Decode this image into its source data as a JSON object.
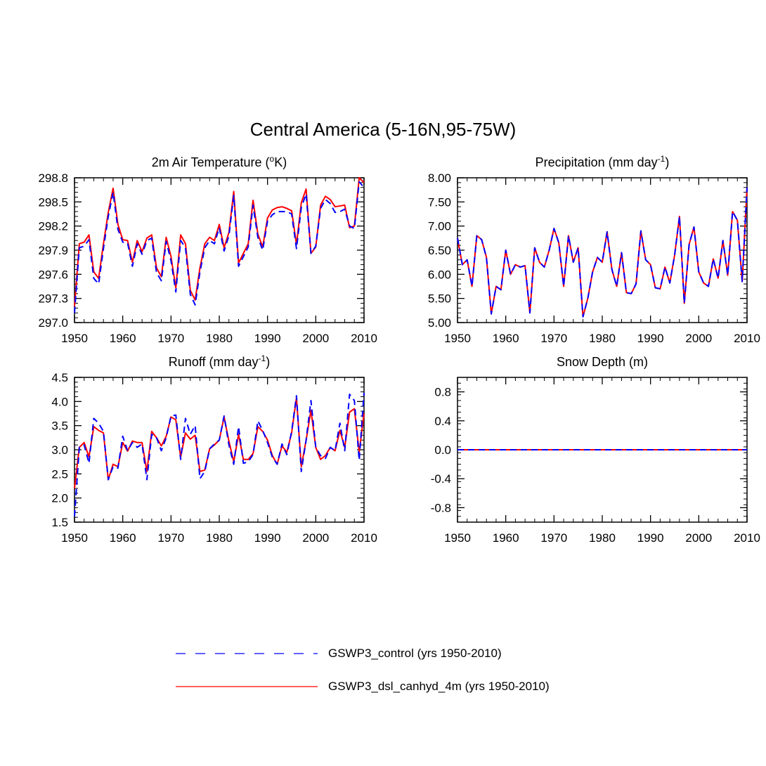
{
  "figure": {
    "title": "Central America (5-16N,95-75W)",
    "legend": [
      {
        "label": "GSWP3_control (yrs 1950-2010)",
        "color": "#0000ff",
        "style": "dashed"
      },
      {
        "label": "GSWP3_dsl_canhyd_4m (yrs 1950-2010)",
        "color": "#ff0000",
        "style": "solid"
      }
    ]
  },
  "chart_data": [
    {
      "type": "line",
      "title": {
        "main": "2m Air Temperature (",
        "sup": "o",
        "after": "K)"
      },
      "xlim": [
        1950,
        2010
      ],
      "xticks": [
        1950,
        1960,
        1970,
        1980,
        1990,
        2000,
        2010
      ],
      "ylim": [
        297.0,
        298.8
      ],
      "yticks": [
        297.0,
        297.3,
        297.6,
        297.9,
        298.2,
        298.5,
        298.8
      ],
      "ytick_labels": [
        "297.0",
        "297.3",
        "297.6",
        "297.9",
        "298.2",
        "298.5",
        "298.8"
      ],
      "x_start": 1950,
      "series": [
        {
          "name": "GSWP3_control",
          "color": "#0000ff",
          "dashed": true,
          "values": [
            297.12,
            297.93,
            297.95,
            298.03,
            297.55,
            297.48,
            297.92,
            298.32,
            298.62,
            298.16,
            298.0,
            297.99,
            297.7,
            297.98,
            297.85,
            298.02,
            298.05,
            297.62,
            297.52,
            298.01,
            297.77,
            297.38,
            298.02,
            297.93,
            297.35,
            297.22,
            297.63,
            297.93,
            298.02,
            297.98,
            298.18,
            297.89,
            298.08,
            298.58,
            297.7,
            297.82,
            297.94,
            298.46,
            298.06,
            297.9,
            298.26,
            298.34,
            298.38,
            298.38,
            298.38,
            298.35,
            297.92,
            298.43,
            298.6,
            297.86,
            297.95,
            298.42,
            298.53,
            298.48,
            298.37,
            298.38,
            298.41,
            298.2,
            298.17,
            298.75,
            298.68
          ]
        },
        {
          "name": "GSWP3_dsl_canhyd_4m",
          "color": "#ff0000",
          "dashed": false,
          "values": [
            297.2,
            297.98,
            298.0,
            298.09,
            297.63,
            297.55,
            297.98,
            298.37,
            298.67,
            298.22,
            298.03,
            298.02,
            297.75,
            298.02,
            297.88,
            298.05,
            298.09,
            297.68,
            297.57,
            298.06,
            297.82,
            297.43,
            298.09,
            297.98,
            297.4,
            297.28,
            297.68,
            297.98,
            298.06,
            298.02,
            298.22,
            297.93,
            298.12,
            298.63,
            297.74,
            297.86,
            297.98,
            298.52,
            298.1,
            297.94,
            298.3,
            298.4,
            298.43,
            298.44,
            298.42,
            298.39,
            297.97,
            298.49,
            298.66,
            297.86,
            297.94,
            298.46,
            298.57,
            298.53,
            298.44,
            298.45,
            298.46,
            298.18,
            298.2,
            298.8,
            298.74
          ]
        }
      ]
    },
    {
      "type": "line",
      "title": {
        "main": "Precipitation (mm day",
        "sup": "-1",
        "after": ")"
      },
      "xlim": [
        1950,
        2010
      ],
      "xticks": [
        1950,
        1960,
        1970,
        1980,
        1990,
        2000,
        2010
      ],
      "ylim": [
        5.0,
        8.0
      ],
      "yticks": [
        5.0,
        5.5,
        6.0,
        6.5,
        7.0,
        7.5,
        8.0
      ],
      "ytick_labels": [
        "5.00",
        "5.50",
        "6.00",
        "6.50",
        "7.00",
        "7.50",
        "8.00"
      ],
      "x_start": 1950,
      "series": [
        {
          "name": "GSWP3_control",
          "color": "#0000ff",
          "dashed": true,
          "values": [
            6.75,
            6.2,
            6.3,
            5.75,
            6.8,
            6.72,
            6.35,
            5.18,
            5.75,
            5.68,
            6.5,
            6.0,
            6.2,
            6.15,
            6.18,
            5.2,
            6.55,
            6.25,
            6.15,
            6.5,
            6.95,
            6.65,
            5.75,
            6.8,
            6.25,
            6.55,
            5.12,
            5.5,
            6.05,
            6.35,
            6.25,
            6.88,
            6.1,
            5.75,
            6.45,
            5.62,
            5.6,
            5.8,
            6.9,
            6.3,
            6.2,
            5.72,
            5.7,
            6.15,
            5.82,
            6.4,
            7.2,
            5.4,
            6.62,
            6.98,
            6.05,
            5.82,
            5.75,
            6.32,
            5.92,
            6.7,
            5.98,
            7.3,
            7.12,
            5.85,
            7.8
          ]
        },
        {
          "name": "GSWP3_dsl_canhyd_4m",
          "color": "#ff0000",
          "dashed": false,
          "values": [
            6.75,
            6.2,
            6.3,
            5.75,
            6.8,
            6.72,
            6.35,
            5.18,
            5.75,
            5.68,
            6.5,
            6.0,
            6.2,
            6.15,
            6.18,
            5.2,
            6.55,
            6.25,
            6.15,
            6.5,
            6.95,
            6.65,
            5.75,
            6.8,
            6.25,
            6.55,
            5.12,
            5.5,
            6.05,
            6.35,
            6.25,
            6.88,
            6.1,
            5.75,
            6.45,
            5.62,
            5.6,
            5.8,
            6.9,
            6.3,
            6.2,
            5.72,
            5.7,
            6.15,
            5.82,
            6.4,
            7.2,
            5.4,
            6.62,
            6.98,
            6.05,
            5.82,
            5.75,
            6.32,
            5.92,
            6.7,
            5.98,
            7.3,
            7.12,
            5.85,
            7.8
          ]
        }
      ]
    },
    {
      "type": "line",
      "title": {
        "main": "Runoff (mm day",
        "sup": "-1",
        "after": ")"
      },
      "xlim": [
        1950,
        2010
      ],
      "xticks": [
        1950,
        1960,
        1970,
        1980,
        1990,
        2000,
        2010
      ],
      "ylim": [
        1.5,
        4.5
      ],
      "yticks": [
        1.5,
        2.0,
        2.5,
        3.0,
        3.5,
        4.0,
        4.5
      ],
      "ytick_labels": [
        "1.5",
        "2.0",
        "2.5",
        "3.0",
        "3.5",
        "4.0",
        "4.5"
      ],
      "x_start": 1950,
      "series": [
        {
          "name": "GSWP3_control",
          "color": "#0000ff",
          "dashed": true,
          "values": [
            1.62,
            3.05,
            3.1,
            2.72,
            3.65,
            3.55,
            3.38,
            2.38,
            2.65,
            2.62,
            3.28,
            2.98,
            3.15,
            3.05,
            3.12,
            2.38,
            3.32,
            3.25,
            2.98,
            3.25,
            3.7,
            3.72,
            2.8,
            3.65,
            3.32,
            3.5,
            2.4,
            2.55,
            3.02,
            3.12,
            3.2,
            3.7,
            3.1,
            2.7,
            3.48,
            2.72,
            2.75,
            2.9,
            3.6,
            3.4,
            3.15,
            2.85,
            2.7,
            3.12,
            2.9,
            3.38,
            4.12,
            2.55,
            3.2,
            4.02,
            3.05,
            2.88,
            2.82,
            3.05,
            2.98,
            3.55,
            2.98,
            4.15,
            4.02,
            2.78,
            4.18
          ]
        },
        {
          "name": "GSWP3_dsl_canhyd_4m",
          "color": "#ff0000",
          "dashed": false,
          "values": [
            2.2,
            3.05,
            3.15,
            2.85,
            3.48,
            3.4,
            3.35,
            2.38,
            2.7,
            2.65,
            3.15,
            2.97,
            3.18,
            3.15,
            3.15,
            2.55,
            3.38,
            3.25,
            3.08,
            3.28,
            3.68,
            3.62,
            2.85,
            3.35,
            3.22,
            3.3,
            2.55,
            2.58,
            3.02,
            3.1,
            3.2,
            3.68,
            3.18,
            2.75,
            3.32,
            2.8,
            2.8,
            2.92,
            3.48,
            3.38,
            3.2,
            2.88,
            2.7,
            3.08,
            2.95,
            3.35,
            4.08,
            2.65,
            3.2,
            3.82,
            3.05,
            2.8,
            2.88,
            3.05,
            2.98,
            3.4,
            3.05,
            3.78,
            3.85,
            2.95,
            3.75
          ]
        }
      ]
    },
    {
      "type": "line",
      "title": {
        "main": "Snow Depth (m)",
        "sup": "",
        "after": ""
      },
      "xlim": [
        1950,
        2010
      ],
      "xticks": [
        1950,
        1960,
        1970,
        1980,
        1990,
        2000,
        2010
      ],
      "ylim": [
        -1.0,
        1.0
      ],
      "yticks": [
        -0.8,
        -0.4,
        0.0,
        0.4,
        0.8
      ],
      "ytick_labels": [
        "-0.8",
        "-0.4",
        "0.0",
        "0.4",
        "0.8"
      ],
      "x_start": 1950,
      "series": [
        {
          "name": "GSWP3_control",
          "color": "#0000ff",
          "dashed": true,
          "values": [
            0,
            0,
            0,
            0,
            0,
            0,
            0,
            0,
            0,
            0,
            0,
            0,
            0,
            0,
            0,
            0,
            0,
            0,
            0,
            0,
            0,
            0,
            0,
            0,
            0,
            0,
            0,
            0,
            0,
            0,
            0,
            0,
            0,
            0,
            0,
            0,
            0,
            0,
            0,
            0,
            0,
            0,
            0,
            0,
            0,
            0,
            0,
            0,
            0,
            0,
            0,
            0,
            0,
            0,
            0,
            0,
            0,
            0,
            0,
            0,
            0
          ]
        },
        {
          "name": "GSWP3_dsl_canhyd_4m",
          "color": "#ff0000",
          "dashed": false,
          "values": [
            0,
            0,
            0,
            0,
            0,
            0,
            0,
            0,
            0,
            0,
            0,
            0,
            0,
            0,
            0,
            0,
            0,
            0,
            0,
            0,
            0,
            0,
            0,
            0,
            0,
            0,
            0,
            0,
            0,
            0,
            0,
            0,
            0,
            0,
            0,
            0,
            0,
            0,
            0,
            0,
            0,
            0,
            0,
            0,
            0,
            0,
            0,
            0,
            0,
            0,
            0,
            0,
            0,
            0,
            0,
            0,
            0,
            0,
            0,
            0,
            0
          ]
        }
      ]
    }
  ]
}
